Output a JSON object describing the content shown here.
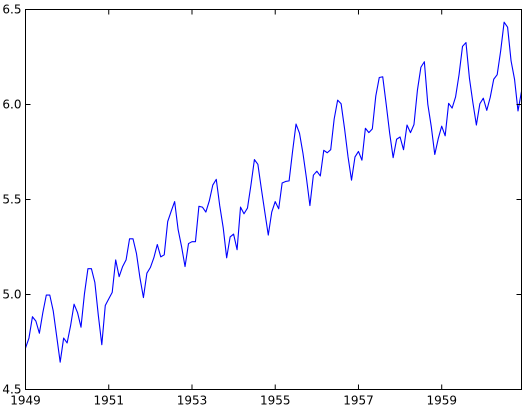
{
  "colors": {
    "series": "#0000ff",
    "axes": "#000000",
    "background": "#ffffff"
  },
  "chart_data": {
    "type": "line",
    "title": "",
    "xlabel": "",
    "ylabel": "",
    "grid": false,
    "legend": "none",
    "xlim": [
      1949.0,
      1960.917
    ],
    "ylim": [
      4.5,
      6.5
    ],
    "x_ticks": [
      {
        "value": 1949,
        "label": "1949"
      },
      {
        "value": 1951,
        "label": "1951"
      },
      {
        "value": 1953,
        "label": "1953"
      },
      {
        "value": 1955,
        "label": "1955"
      },
      {
        "value": 1957,
        "label": "1957"
      },
      {
        "value": 1959,
        "label": "1959"
      }
    ],
    "y_ticks": [
      {
        "value": 4.5,
        "label": "4.5"
      },
      {
        "value": 5.0,
        "label": "5.0"
      },
      {
        "value": 5.5,
        "label": "5.5"
      },
      {
        "value": 6.0,
        "label": "6.0"
      },
      {
        "value": 6.5,
        "label": "6.5"
      }
    ],
    "x_start": 1949.0,
    "x_step": 0.08333,
    "series": [
      {
        "values": [
          4.718,
          4.771,
          4.883,
          4.86,
          4.796,
          4.905,
          4.997,
          4.997,
          4.913,
          4.779,
          4.644,
          4.771,
          4.745,
          4.836,
          4.949,
          4.905,
          4.828,
          5.004,
          5.136,
          5.136,
          5.063,
          4.89,
          4.736,
          4.942,
          4.977,
          5.011,
          5.182,
          5.094,
          5.147,
          5.182,
          5.293,
          5.293,
          5.215,
          5.088,
          4.984,
          5.112,
          5.142,
          5.193,
          5.263,
          5.198,
          5.209,
          5.384,
          5.438,
          5.489,
          5.342,
          5.252,
          5.147,
          5.268,
          5.278,
          5.278,
          5.464,
          5.46,
          5.434,
          5.493,
          5.576,
          5.606,
          5.468,
          5.352,
          5.193,
          5.303,
          5.318,
          5.236,
          5.46,
          5.425,
          5.455,
          5.576,
          5.71,
          5.685,
          5.557,
          5.434,
          5.313,
          5.434,
          5.489,
          5.451,
          5.587,
          5.595,
          5.598,
          5.753,
          5.897,
          5.849,
          5.743,
          5.613,
          5.468,
          5.628,
          5.649,
          5.624,
          5.759,
          5.746,
          5.762,
          5.924,
          6.023,
          6.004,
          5.872,
          5.724,
          5.602,
          5.724,
          5.753,
          5.707,
          5.875,
          5.852,
          5.872,
          6.045,
          6.142,
          6.146,
          6.001,
          5.849,
          5.72,
          5.817,
          5.829,
          5.762,
          5.892,
          5.852,
          5.894,
          6.075,
          6.196,
          6.225,
          6.001,
          5.883,
          5.737,
          5.82,
          5.886,
          5.835,
          6.006,
          5.981,
          6.04,
          6.157,
          6.306,
          6.326,
          6.138,
          6.009,
          5.892,
          6.004,
          6.033,
          5.969,
          6.038,
          6.133,
          6.157,
          6.282,
          6.433,
          6.407,
          6.23,
          6.133,
          5.966,
          6.068
        ]
      }
    ]
  }
}
